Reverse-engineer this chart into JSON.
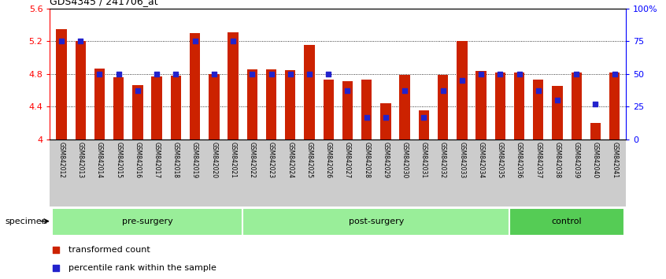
{
  "title": "GDS4345 / 241706_at",
  "specimens": [
    "GSM842012",
    "GSM842013",
    "GSM842014",
    "GSM842015",
    "GSM842016",
    "GSM842017",
    "GSM842018",
    "GSM842019",
    "GSM842020",
    "GSM842021",
    "GSM842022",
    "GSM842023",
    "GSM842024",
    "GSM842025",
    "GSM842026",
    "GSM842027",
    "GSM842028",
    "GSM842029",
    "GSM842030",
    "GSM842031",
    "GSM842032",
    "GSM842033",
    "GSM842034",
    "GSM842035",
    "GSM842036",
    "GSM842037",
    "GSM842038",
    "GSM842039",
    "GSM842040",
    "GSM842041"
  ],
  "red_values": [
    5.35,
    5.2,
    4.87,
    4.76,
    4.66,
    4.77,
    4.78,
    5.3,
    4.8,
    5.31,
    4.86,
    4.86,
    4.85,
    5.15,
    4.73,
    4.71,
    4.73,
    4.44,
    4.79,
    4.36,
    4.79,
    5.2,
    4.84,
    4.82,
    4.82,
    4.73,
    4.65,
    4.82,
    4.2,
    4.82
  ],
  "blue_percentiles": [
    75,
    75,
    50,
    50,
    37,
    50,
    50,
    75,
    50,
    75,
    50,
    50,
    50,
    50,
    50,
    37,
    17,
    17,
    37,
    17,
    37,
    45,
    50,
    50,
    50,
    37,
    30,
    50,
    27,
    50
  ],
  "ylim_left": [
    4.0,
    5.6
  ],
  "ylim_right": [
    0,
    100
  ],
  "yticks_left": [
    4.0,
    4.4,
    4.8,
    5.2,
    5.6
  ],
  "ytick_labels_left": [
    "4",
    "4.4",
    "4.8",
    "5.2",
    "5.6"
  ],
  "yticks_right": [
    0,
    25,
    50,
    75,
    100
  ],
  "ytick_labels_right": [
    "0",
    "25",
    "50",
    "75",
    "100%"
  ],
  "bar_color": "#cc2200",
  "marker_color": "#2222cc",
  "group_data": [
    {
      "label": "pre-surgery",
      "start": 0,
      "end": 9,
      "color": "#99ee99"
    },
    {
      "label": "post-surgery",
      "start": 10,
      "end": 23,
      "color": "#99ee99"
    },
    {
      "label": "control",
      "start": 24,
      "end": 29,
      "color": "#55cc55"
    }
  ],
  "legend_red": "transformed count",
  "legend_blue": "percentile rank within the sample",
  "specimen_label": "specimen"
}
